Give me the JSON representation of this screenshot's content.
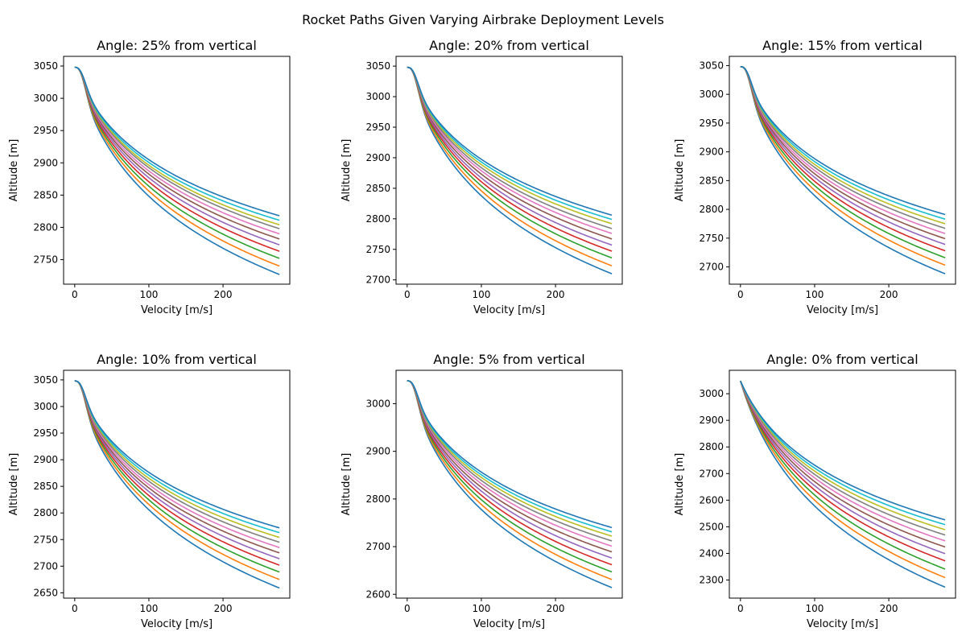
{
  "figure_title": "Rocket Paths Given Varying Airbrake Deployment Levels",
  "series_colors": [
    "#1f77b4",
    "#ff7f0e",
    "#2ca02c",
    "#d62728",
    "#9467bd",
    "#8c564b",
    "#e377c2",
    "#7f7f7f",
    "#bcbd22",
    "#17becf",
    "#1f77b4"
  ],
  "chart_data": [
    {
      "type": "line",
      "title": "Angle: 25% from vertical",
      "xlabel": "Velocity [m/s]",
      "ylabel": "Altitude [m]",
      "xlim": [
        -15,
        290
      ],
      "ylim": [
        2712,
        3065
      ],
      "xticks": [
        0,
        100,
        200
      ],
      "yticks": [
        2750,
        2800,
        2850,
        2900,
        2950,
        3000,
        3050
      ],
      "start_altitude": 3048,
      "max_velocity": 276,
      "end_altitudes": [
        2727,
        2740,
        2752,
        2763,
        2773,
        2782,
        2790,
        2798,
        2804,
        2811,
        2818
      ],
      "shape": "s-curve"
    },
    {
      "type": "line",
      "title": "Angle: 20% from vertical",
      "xlabel": "Velocity [m/s]",
      "ylabel": "Altitude [m]",
      "xlim": [
        -15,
        290
      ],
      "ylim": [
        2693,
        3066
      ],
      "xticks": [
        0,
        100,
        200
      ],
      "yticks": [
        2700,
        2750,
        2800,
        2850,
        2900,
        2950,
        3000,
        3050
      ],
      "start_altitude": 3048,
      "max_velocity": 276,
      "end_altitudes": [
        2710,
        2723,
        2736,
        2747,
        2757,
        2767,
        2776,
        2784,
        2792,
        2799,
        2806
      ],
      "shape": "s-curve"
    },
    {
      "type": "line",
      "title": "Angle: 15% from vertical",
      "xlabel": "Velocity [m/s]",
      "ylabel": "Altitude [m]",
      "xlim": [
        -15,
        290
      ],
      "ylim": [
        2670,
        3066
      ],
      "xticks": [
        0,
        100,
        200
      ],
      "yticks": [
        2700,
        2750,
        2800,
        2850,
        2900,
        2950,
        3000,
        3050
      ],
      "start_altitude": 3048,
      "max_velocity": 276,
      "end_altitudes": [
        2688,
        2703,
        2716,
        2728,
        2739,
        2749,
        2758,
        2767,
        2775,
        2783,
        2791
      ],
      "shape": "s-curve"
    },
    {
      "type": "line",
      "title": "Angle: 10% from vertical",
      "xlabel": "Velocity [m/s]",
      "ylabel": "Altitude [m]",
      "xlim": [
        -15,
        290
      ],
      "ylim": [
        2640,
        3068
      ],
      "xticks": [
        0,
        100,
        200
      ],
      "yticks": [
        2650,
        2700,
        2750,
        2800,
        2850,
        2900,
        2950,
        3000,
        3050
      ],
      "start_altitude": 3048,
      "max_velocity": 276,
      "end_altitudes": [
        2659,
        2675,
        2689,
        2702,
        2714,
        2725,
        2735,
        2745,
        2754,
        2763,
        2772
      ],
      "shape": "s-curve"
    },
    {
      "type": "line",
      "title": "Angle: 5% from vertical",
      "xlabel": "Velocity [m/s]",
      "ylabel": "Altitude [m]",
      "xlim": [
        -15,
        290
      ],
      "ylim": [
        2592,
        3070
      ],
      "xticks": [
        0,
        100,
        200
      ],
      "yticks": [
        2600,
        2700,
        2800,
        2900,
        3000
      ],
      "start_altitude": 3048,
      "max_velocity": 276,
      "end_altitudes": [
        2614,
        2631,
        2647,
        2662,
        2676,
        2689,
        2701,
        2712,
        2722,
        2731,
        2740
      ],
      "shape": "s-curve"
    },
    {
      "type": "line",
      "title": "Angle: 0% from vertical",
      "xlabel": "Velocity [m/s]",
      "ylabel": "Altitude [m]",
      "xlim": [
        -15,
        290
      ],
      "ylim": [
        2232,
        3088
      ],
      "xticks": [
        0,
        100,
        200
      ],
      "yticks": [
        2300,
        2400,
        2500,
        2600,
        2700,
        2800,
        2900,
        3000
      ],
      "start_altitude": 3048,
      "max_velocity": 276,
      "end_altitudes": [
        2273,
        2309,
        2341,
        2372,
        2399,
        2424,
        2447,
        2469,
        2489,
        2508,
        2526
      ],
      "shape": "sharp-drop"
    }
  ]
}
